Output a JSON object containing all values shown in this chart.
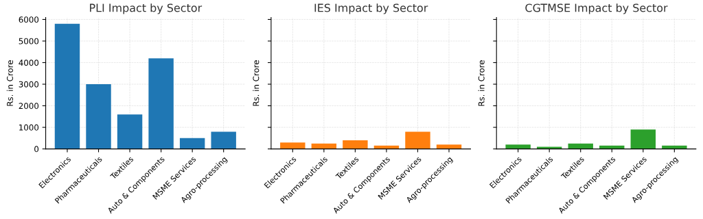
{
  "chart_data": [
    {
      "type": "bar",
      "title": "PLI Impact by Sector",
      "ylabel": "Rs. in Crore",
      "categories": [
        "Electronics",
        "Pharmaceuticals",
        "Textiles",
        "Auto & Components",
        "MSME Services",
        "Agro-processing"
      ],
      "values": [
        5800,
        3000,
        1600,
        4200,
        500,
        800
      ],
      "color": "#1f77b4",
      "ylim": [
        0,
        6090
      ],
      "yticks": [
        0,
        1000,
        2000,
        3000,
        4000,
        5000,
        6000
      ],
      "grid": true
    },
    {
      "type": "bar",
      "title": "IES Impact by Sector",
      "ylabel": "Rs. in Crore",
      "categories": [
        "Electronics",
        "Pharmaceuticals",
        "Textiles",
        "Auto & Components",
        "MSME Services",
        "Agro-processing"
      ],
      "values": [
        300,
        250,
        400,
        150,
        800,
        200
      ],
      "color": "#ff7f0e",
      "ylim": [
        0,
        6090
      ],
      "yticks": [
        0,
        1000,
        2000,
        3000,
        4000,
        5000,
        6000
      ],
      "grid": true,
      "tick_labels": "x"
    },
    {
      "type": "bar",
      "title": "CGTMSE Impact by Sector",
      "ylabel": "Rs. in Crore",
      "categories": [
        "Electronics",
        "Pharmaceuticals",
        "Textiles",
        "Auto & Components",
        "MSME Services",
        "Agro-processing"
      ],
      "values": [
        200,
        100,
        250,
        150,
        900,
        150
      ],
      "color": "#2ca02c",
      "ylim": [
        0,
        6090
      ],
      "yticks": [
        0,
        1000,
        2000,
        3000,
        4000,
        5000,
        6000
      ],
      "grid": true,
      "tick_labels": "x"
    }
  ]
}
